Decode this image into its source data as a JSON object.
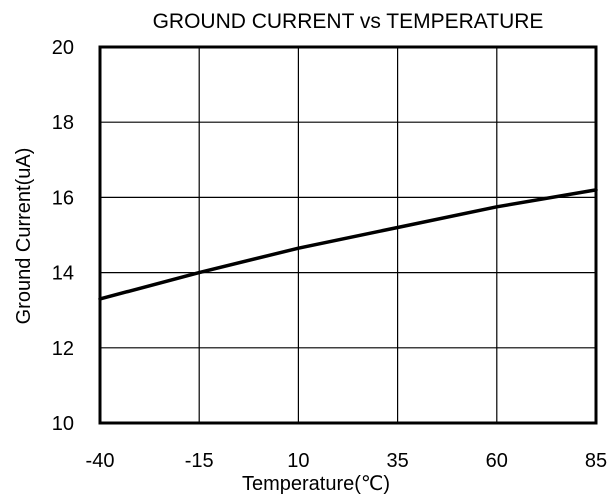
{
  "chart_data": {
    "type": "line",
    "title": "GROUND CURRENT vs TEMPERATURE",
    "xlabel": "Temperature(℃)",
    "ylabel": "Ground Current(uA)",
    "xlim": [
      -40,
      85
    ],
    "ylim": [
      10,
      20
    ],
    "xticks": [
      -40,
      -15,
      10,
      35,
      60,
      85
    ],
    "yticks": [
      10,
      12,
      14,
      16,
      18,
      20
    ],
    "grid": true,
    "series": [
      {
        "x": [
          -40,
          -15,
          10,
          35,
          60,
          85
        ],
        "y": [
          13.3,
          14.0,
          14.65,
          15.2,
          15.75,
          16.2
        ]
      }
    ]
  }
}
